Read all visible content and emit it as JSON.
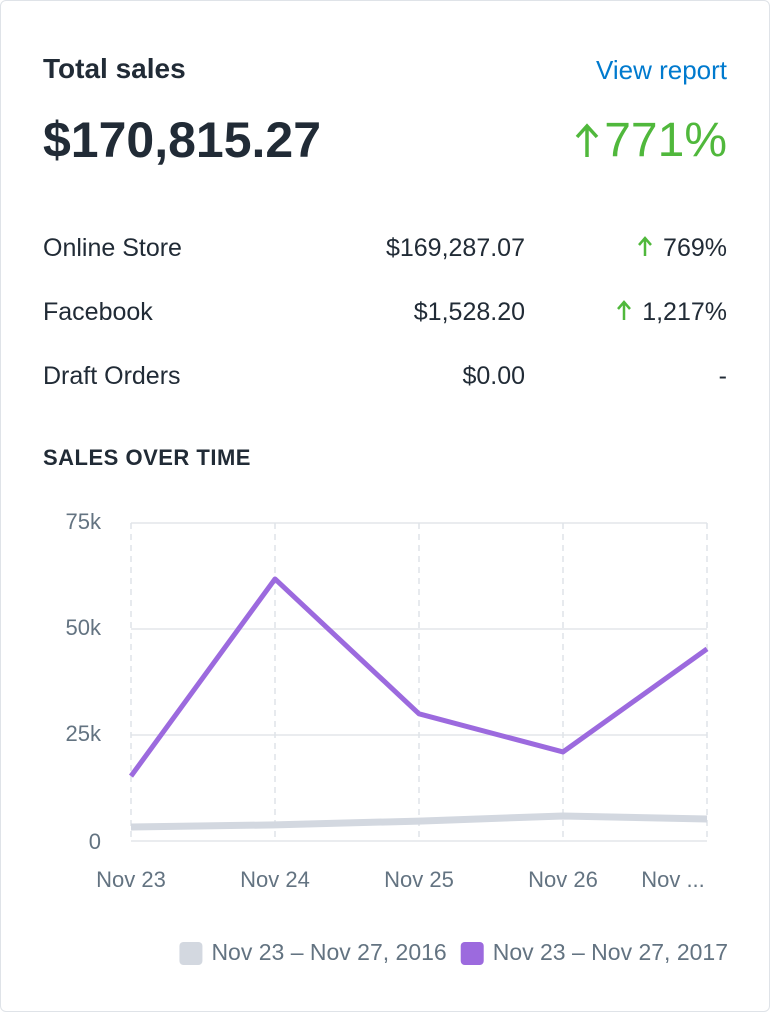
{
  "header": {
    "title": "Total sales",
    "link": "View report",
    "total": "$170,815.27",
    "change": "771%"
  },
  "table": {
    "rows": [
      [
        "Online Store",
        "$169,287.07",
        "769%"
      ],
      [
        "Facebook",
        "$1,528.20",
        "1,217%"
      ],
      [
        "Draft Orders",
        "$0.00",
        "-"
      ]
    ]
  },
  "chart_data": {
    "type": "line",
    "title": "SALES OVER TIME",
    "categories": [
      "Nov 23",
      "Nov 24",
      "Nov 25",
      "Nov 26",
      "Nov ..."
    ],
    "series": [
      {
        "name": "Nov 23 – Nov 27, 2016",
        "color": "#d3d8e0",
        "values": [
          3300,
          3800,
          4700,
          5900,
          5200
        ]
      },
      {
        "name": "Nov 23 – Nov 27, 2017",
        "color": "#9c6ade",
        "values": [
          15300,
          61800,
          30000,
          21000,
          45300
        ]
      }
    ],
    "ylim": [
      0,
      75000
    ],
    "yticks": [
      0,
      {
        "value": 25000,
        "label": "25k"
      },
      {
        "value": 50000,
        "label": "50k"
      },
      {
        "value": 75000,
        "label": "75k"
      }
    ],
    "grid": true
  }
}
